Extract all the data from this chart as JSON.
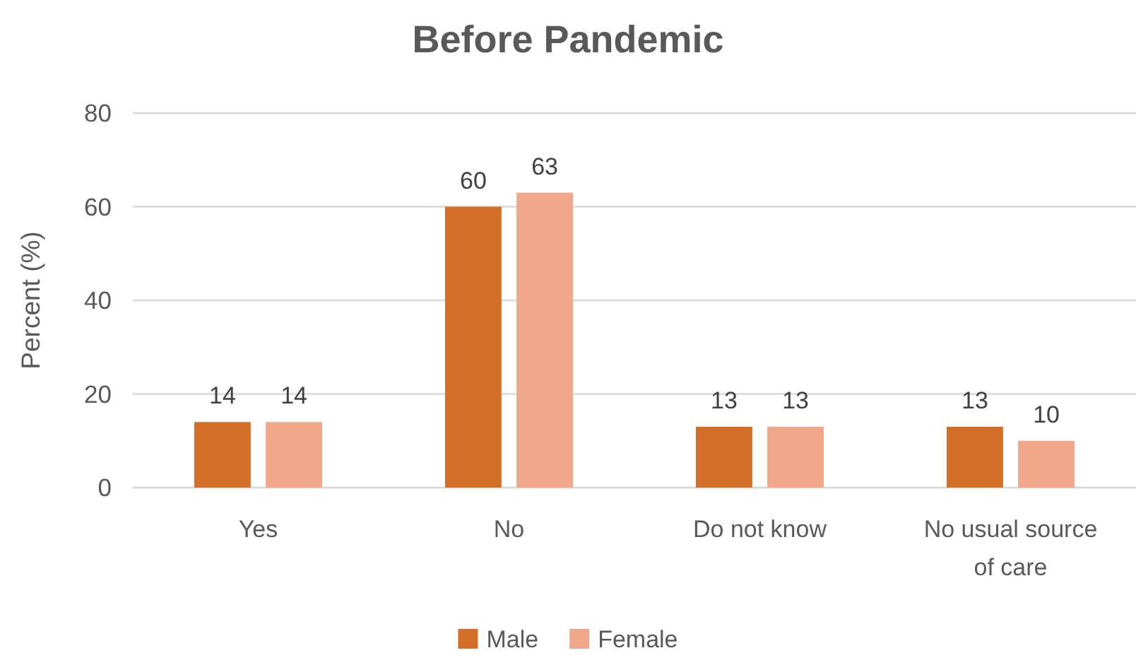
{
  "chart_data": {
    "type": "bar",
    "title": "Before Pandemic",
    "ylabel": "Percent (%)",
    "categories": [
      "Yes",
      "No",
      "Do not know",
      "No usual source of care"
    ],
    "series": [
      {
        "name": "Male",
        "color": "#d46f2a",
        "values": [
          14,
          60,
          13,
          13
        ]
      },
      {
        "name": "Female",
        "color": "#f1a88a",
        "values": [
          14,
          63,
          13,
          10
        ]
      }
    ],
    "ylim": [
      0,
      80
    ],
    "yticks": [
      0,
      20,
      40,
      60,
      80
    ],
    "grid": "y",
    "legend": "bottom",
    "data_labels": true
  }
}
